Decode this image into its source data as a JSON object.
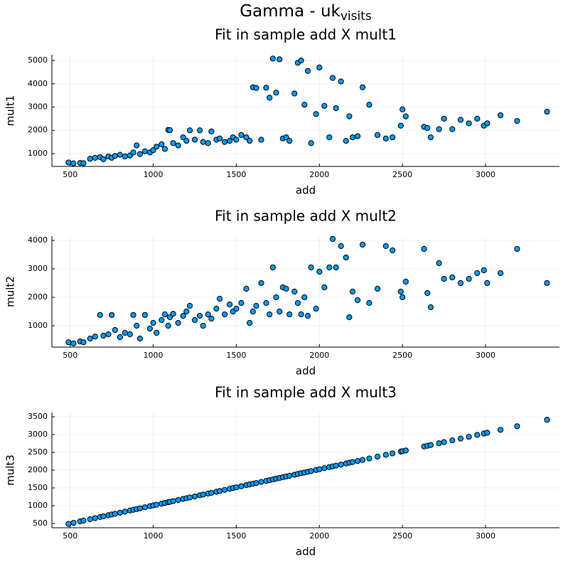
{
  "suptitle": "Gamma -  uk",
  "suptitle_subscript": "visits",
  "chart_data": [
    {
      "type": "scatter",
      "title": "Fit in sample add X mult1",
      "xlabel": "add",
      "ylabel": "mult1",
      "color": "#009af9",
      "grid": true,
      "xlim": [
        390,
        3445
      ],
      "ylim": [
        450,
        5245
      ],
      "xticks": [
        500,
        1000,
        1500,
        2000,
        2500,
        3000
      ],
      "yticks": [
        1000,
        2000,
        3000,
        4000,
        5000
      ],
      "x": [
        490,
        520,
        560,
        580,
        620,
        650,
        680,
        700,
        730,
        750,
        770,
        800,
        830,
        860,
        880,
        900,
        920,
        950,
        980,
        1000,
        1020,
        1050,
        1070,
        1090,
        1100,
        1120,
        1150,
        1180,
        1200,
        1220,
        1250,
        1280,
        1300,
        1330,
        1350,
        1380,
        1400,
        1430,
        1460,
        1480,
        1500,
        1530,
        1560,
        1580,
        1600,
        1620,
        1650,
        1680,
        1700,
        1720,
        1740,
        1760,
        1780,
        1800,
        1820,
        1850,
        1870,
        1890,
        1910,
        1930,
        1950,
        1980,
        2000,
        2030,
        2060,
        2080,
        2100,
        2130,
        2160,
        2180,
        2200,
        2230,
        2260,
        2300,
        2350,
        2400,
        2440,
        2490,
        2500,
        2520,
        2630,
        2650,
        2670,
        2720,
        2750,
        2800,
        2850,
        2900,
        2950,
        2990,
        3010,
        3090,
        3190,
        3370
      ],
      "y": [
        620,
        580,
        600,
        590,
        780,
        820,
        850,
        760,
        880,
        820,
        900,
        950,
        880,
        920,
        1050,
        1350,
        980,
        1100,
        1050,
        1150,
        1300,
        1400,
        1200,
        2020,
        2010,
        1450,
        1350,
        1700,
        1550,
        2000,
        1600,
        2000,
        1500,
        1450,
        1950,
        1600,
        1650,
        1500,
        1550,
        1700,
        1600,
        1800,
        1700,
        1550,
        3850,
        3820,
        1600,
        3830,
        3400,
        5080,
        3620,
        5050,
        1650,
        1700,
        1550,
        3580,
        4900,
        5000,
        3100,
        4550,
        1450,
        2700,
        4700,
        3050,
        1700,
        4250,
        2950,
        4100,
        1550,
        2600,
        1700,
        1750,
        3850,
        3100,
        1800,
        1650,
        1700,
        2200,
        2900,
        2600,
        2150,
        2100,
        1700,
        2050,
        2500,
        2050,
        2450,
        2300,
        2500,
        2200,
        2300,
        2650,
        2400,
        2800
      ]
    },
    {
      "type": "scatter",
      "title": "Fit in sample add X mult2",
      "xlabel": "add",
      "ylabel": "mult2",
      "color": "#009af9",
      "grid": true,
      "xlim": [
        390,
        3445
      ],
      "ylim": [
        250,
        4150
      ],
      "xticks": [
        500,
        1000,
        1500,
        2000,
        2500,
        3000
      ],
      "yticks": [
        1000,
        2000,
        3000,
        4000
      ],
      "x": [
        490,
        520,
        560,
        580,
        620,
        650,
        680,
        700,
        730,
        750,
        770,
        800,
        830,
        860,
        880,
        900,
        920,
        950,
        980,
        1000,
        1020,
        1050,
        1070,
        1090,
        1100,
        1120,
        1150,
        1180,
        1200,
        1220,
        1250,
        1280,
        1300,
        1330,
        1350,
        1380,
        1400,
        1430,
        1460,
        1480,
        1500,
        1530,
        1560,
        1580,
        1600,
        1620,
        1650,
        1680,
        1700,
        1720,
        1740,
        1760,
        1780,
        1800,
        1820,
        1850,
        1870,
        1890,
        1910,
        1930,
        1950,
        1980,
        2000,
        2030,
        2060,
        2080,
        2100,
        2130,
        2160,
        2180,
        2200,
        2230,
        2260,
        2300,
        2350,
        2400,
        2440,
        2490,
        2500,
        2520,
        2630,
        2650,
        2670,
        2720,
        2750,
        2800,
        2850,
        2900,
        2950,
        2990,
        3010,
        3090,
        3190,
        3370
      ],
      "y": [
        420,
        380,
        450,
        420,
        550,
        620,
        1380,
        650,
        700,
        1380,
        850,
        600,
        750,
        700,
        1380,
        1000,
        550,
        1380,
        900,
        1100,
        750,
        1200,
        1400,
        1000,
        1300,
        1420,
        1100,
        1350,
        1500,
        1700,
        1200,
        1350,
        1000,
        1400,
        1250,
        1600,
        1950,
        1400,
        1750,
        1500,
        1600,
        1800,
        2300,
        1100,
        1500,
        1700,
        2500,
        1800,
        1400,
        3050,
        2000,
        1500,
        2350,
        2300,
        1400,
        2200,
        1800,
        1400,
        2000,
        1350,
        3050,
        1600,
        2900,
        2350,
        3050,
        4050,
        3050,
        3800,
        3400,
        1300,
        2200,
        1900,
        3850,
        1800,
        2300,
        3800,
        3650,
        2200,
        2000,
        2550,
        3700,
        2150,
        1650,
        3200,
        2650,
        2700,
        2500,
        2650,
        2850,
        2950,
        2500,
        2850,
        3700,
        2500
      ]
    },
    {
      "type": "scatter",
      "title": "Fit in sample add X mult3",
      "xlabel": "add",
      "ylabel": "mult3",
      "color": "#009af9",
      "grid": true,
      "xlim": [
        390,
        3445
      ],
      "ylim": [
        380,
        3620
      ],
      "xticks": [
        500,
        1000,
        1500,
        2000,
        2500,
        3000
      ],
      "yticks": [
        500,
        1000,
        1500,
        2000,
        2500,
        3000,
        3500
      ],
      "x": [
        490,
        520,
        560,
        580,
        620,
        650,
        680,
        700,
        730,
        750,
        770,
        800,
        830,
        860,
        880,
        900,
        920,
        950,
        980,
        1000,
        1020,
        1050,
        1070,
        1090,
        1100,
        1120,
        1150,
        1180,
        1200,
        1220,
        1250,
        1280,
        1300,
        1330,
        1350,
        1380,
        1400,
        1430,
        1460,
        1480,
        1500,
        1530,
        1560,
        1580,
        1600,
        1620,
        1650,
        1680,
        1700,
        1720,
        1740,
        1760,
        1780,
        1800,
        1820,
        1850,
        1870,
        1890,
        1910,
        1930,
        1950,
        1980,
        2000,
        2030,
        2060,
        2080,
        2100,
        2130,
        2160,
        2180,
        2200,
        2230,
        2260,
        2300,
        2350,
        2400,
        2440,
        2490,
        2500,
        2520,
        2630,
        2650,
        2670,
        2720,
        2750,
        2800,
        2850,
        2900,
        2950,
        2990,
        3010,
        3090,
        3190,
        3370
      ],
      "y": [
        488,
        519,
        560,
        580,
        620,
        651,
        682,
        702,
        732,
        753,
        773,
        804,
        834,
        865,
        885,
        905,
        926,
        956,
        987,
        1007,
        1027,
        1058,
        1078,
        1099,
        1109,
        1129,
        1160,
        1190,
        1210,
        1231,
        1261,
        1292,
        1312,
        1343,
        1363,
        1393,
        1414,
        1444,
        1475,
        1495,
        1516,
        1546,
        1577,
        1597,
        1617,
        1638,
        1668,
        1699,
        1719,
        1739,
        1760,
        1780,
        1800,
        1821,
        1841,
        1871,
        1892,
        1912,
        1932,
        1953,
        1973,
        2004,
        2024,
        2055,
        2085,
        2105,
        2126,
        2156,
        2187,
        2207,
        2227,
        2258,
        2288,
        2329,
        2380,
        2431,
        2471,
        2522,
        2533,
        2553,
        2665,
        2685,
        2705,
        2756,
        2787,
        2838,
        2888,
        2939,
        2990,
        3031,
        3052,
        3133,
        3234,
        3417
      ]
    }
  ]
}
